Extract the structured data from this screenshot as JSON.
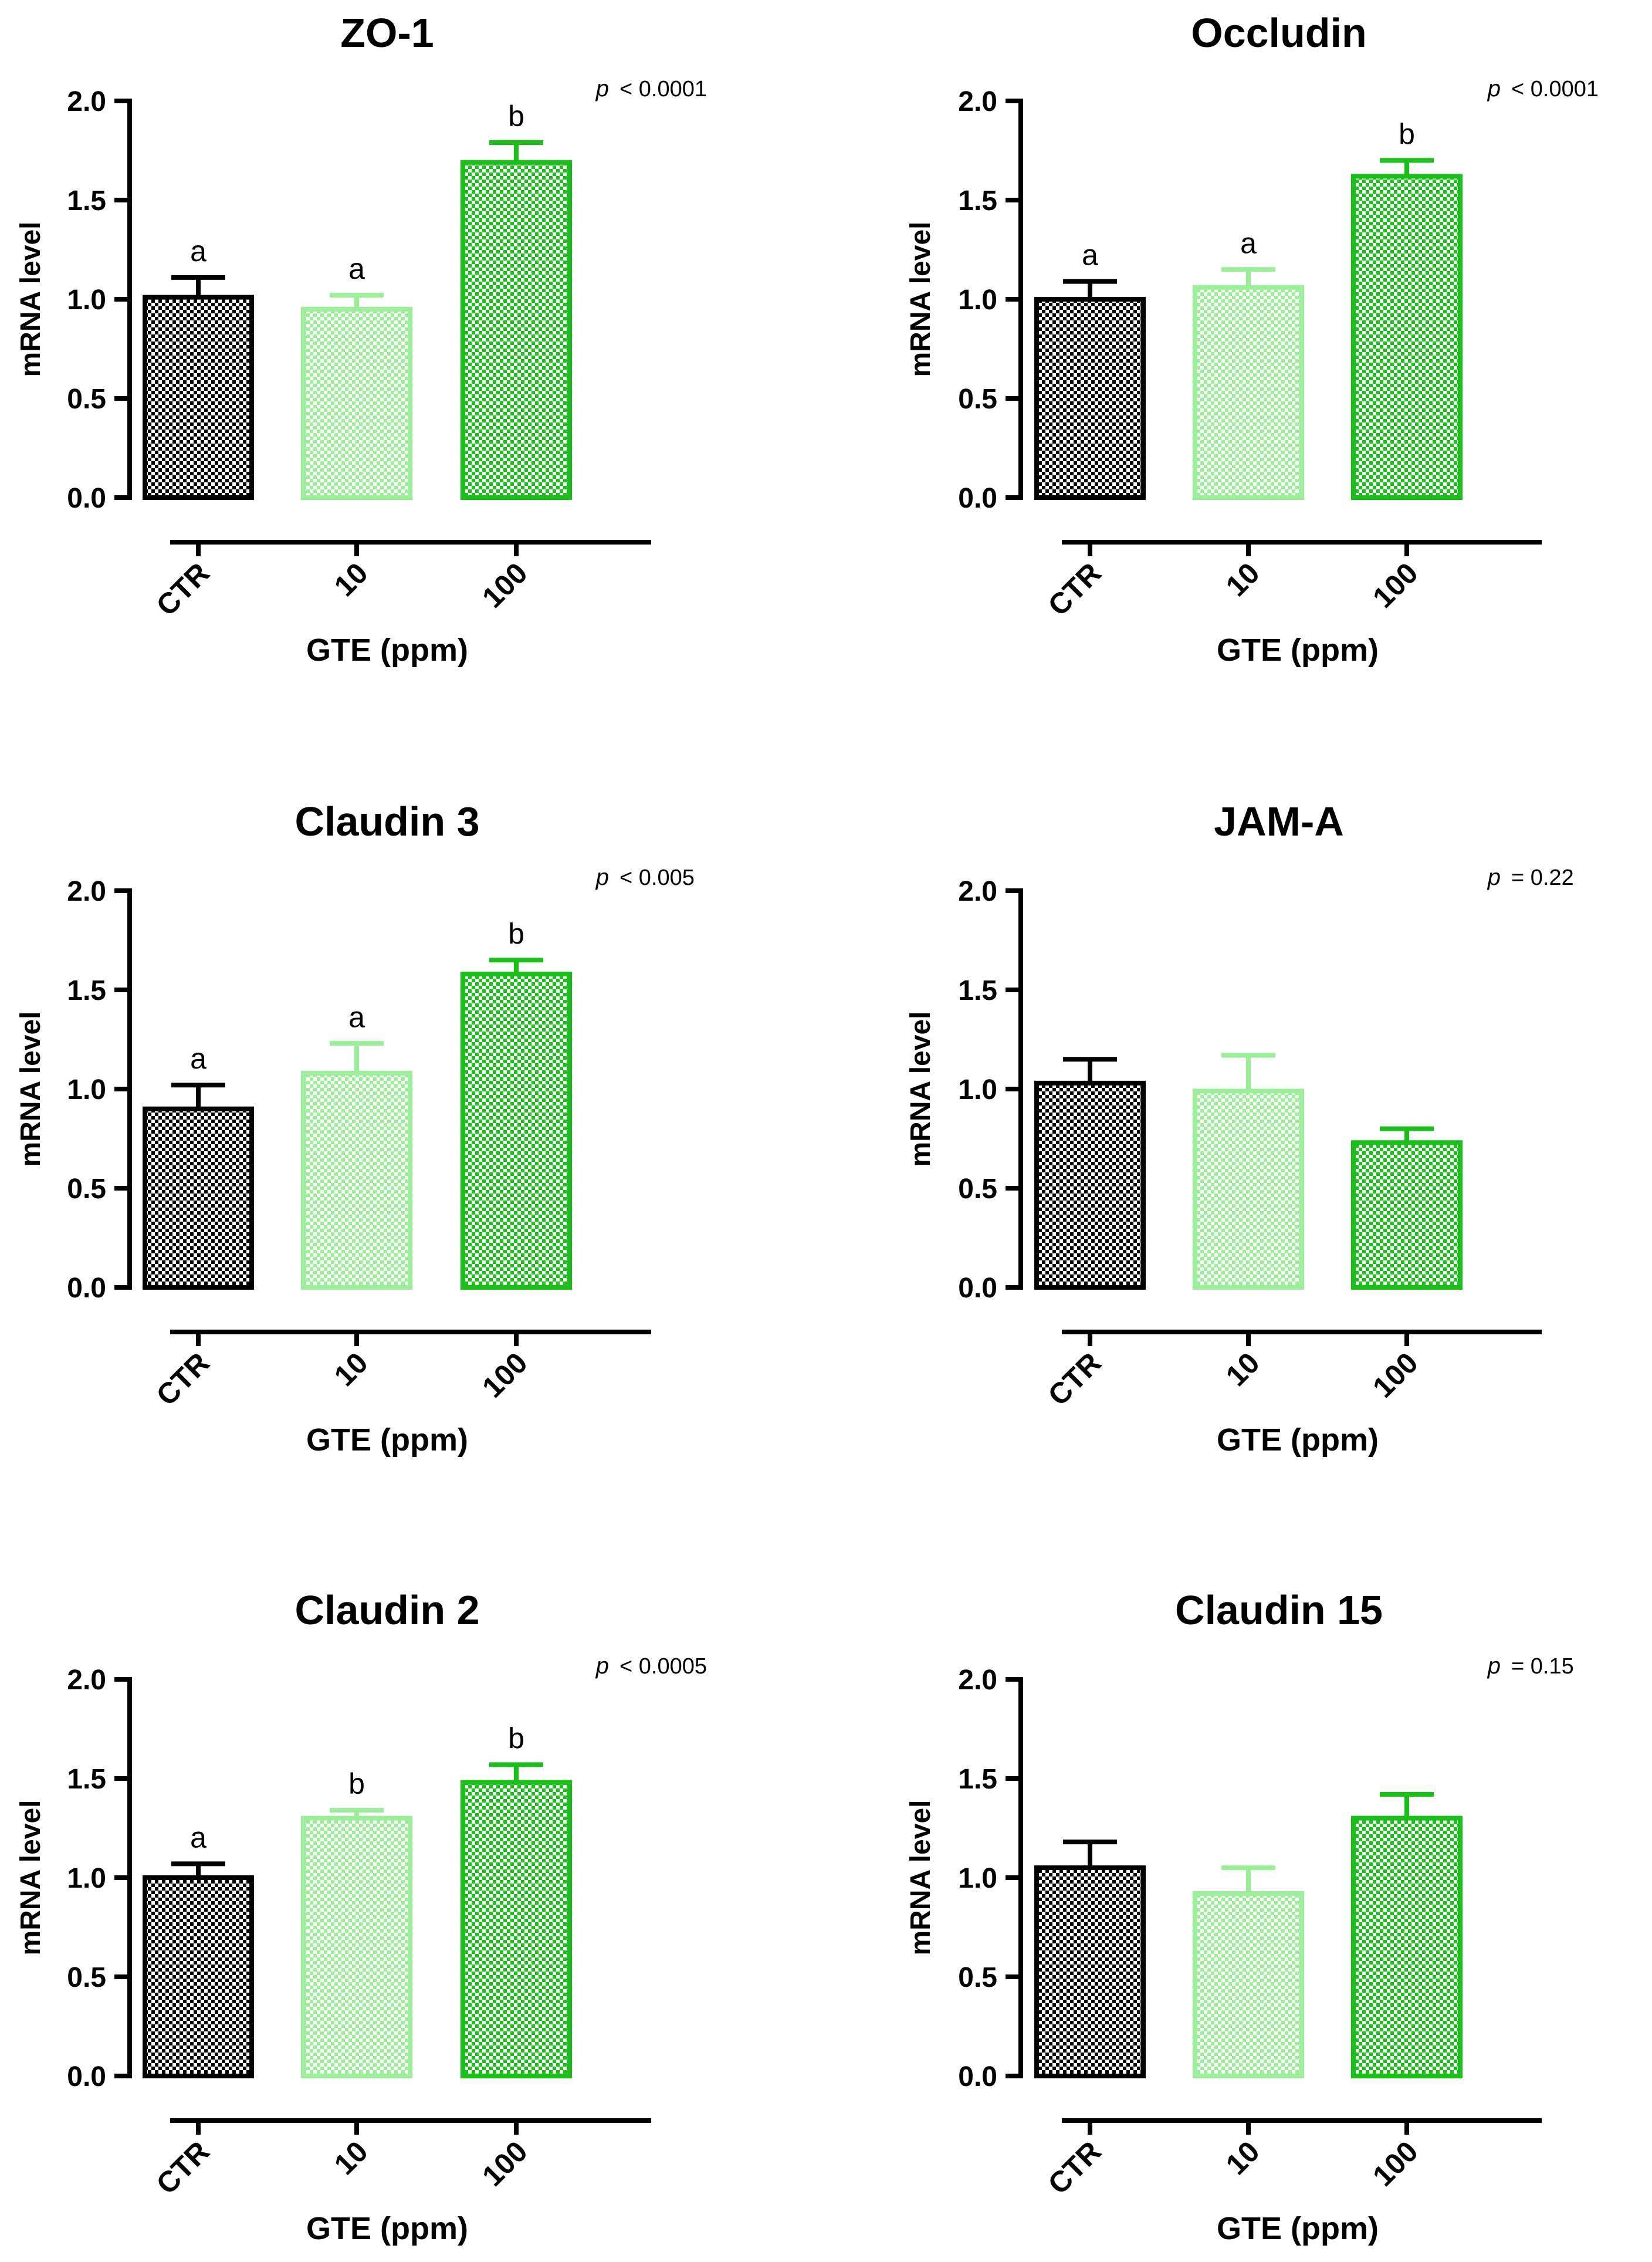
{
  "figure": {
    "colors": {
      "axis": "#000000",
      "CTR": "#000000",
      "10": "#99f096",
      "100": "#17c117"
    },
    "pattern": "checkerboard"
  },
  "chart_data": [
    {
      "type": "bar",
      "title": "ZO-1",
      "categories": [
        "CTR",
        "10",
        "100"
      ],
      "values": [
        1.01,
        0.95,
        1.69
      ],
      "errors": [
        0.1,
        0.07,
        0.1
      ],
      "significance": [
        "a",
        "a",
        "b"
      ],
      "p_symbol": "p",
      "p_text": "< 0.0001",
      "xlabel": "GTE (ppm)",
      "ylabel": "mRNA level",
      "ylim": [
        0,
        2.0
      ],
      "yticks": [
        "0.0",
        "0.5",
        "1.0",
        "1.5",
        "2.0"
      ],
      "grid": false
    },
    {
      "type": "bar",
      "title": "Occludin",
      "categories": [
        "CTR",
        "10",
        "100"
      ],
      "values": [
        1.0,
        1.06,
        1.62
      ],
      "errors": [
        0.09,
        0.09,
        0.08
      ],
      "significance": [
        "a",
        "a",
        "b"
      ],
      "p_symbol": "p",
      "p_text": "< 0.0001",
      "xlabel": "GTE (ppm)",
      "ylabel": "mRNA level",
      "ylim": [
        0,
        2.0
      ],
      "yticks": [
        "0.0",
        "0.5",
        "1.0",
        "1.5",
        "2.0"
      ],
      "grid": false
    },
    {
      "type": "bar",
      "title": "Claudin 3",
      "categories": [
        "CTR",
        "10",
        "100"
      ],
      "values": [
        0.9,
        1.08,
        1.58
      ],
      "errors": [
        0.12,
        0.15,
        0.07
      ],
      "significance": [
        "a",
        "a",
        "b"
      ],
      "p_symbol": "p",
      "p_text": "< 0.005",
      "xlabel": "GTE (ppm)",
      "ylabel": "mRNA level",
      "ylim": [
        0,
        2.0
      ],
      "yticks": [
        "0.0",
        "0.5",
        "1.0",
        "1.5",
        "2.0"
      ],
      "grid": false
    },
    {
      "type": "bar",
      "title": "JAM-A",
      "categories": [
        "CTR",
        "10",
        "100"
      ],
      "values": [
        1.03,
        0.99,
        0.73
      ],
      "errors": [
        0.12,
        0.18,
        0.07
      ],
      "significance": [
        "",
        "",
        ""
      ],
      "p_symbol": "p",
      "p_text": "= 0.22",
      "xlabel": "GTE (ppm)",
      "ylabel": "mRNA level",
      "ylim": [
        0,
        2.0
      ],
      "yticks": [
        "0.0",
        "0.5",
        "1.0",
        "1.5",
        "2.0"
      ],
      "grid": false
    },
    {
      "type": "bar",
      "title": "Claudin 2",
      "categories": [
        "CTR",
        "10",
        "100"
      ],
      "values": [
        1.0,
        1.3,
        1.48
      ],
      "errors": [
        0.07,
        0.04,
        0.09
      ],
      "significance": [
        "a",
        "b",
        "b"
      ],
      "p_symbol": "p",
      "p_text": "< 0.0005",
      "xlabel": "GTE (ppm)",
      "ylabel": "mRNA level",
      "ylim": [
        0,
        2.0
      ],
      "yticks": [
        "0.0",
        "0.5",
        "1.0",
        "1.5",
        "2.0"
      ],
      "grid": false
    },
    {
      "type": "bar",
      "title": "Claudin 15",
      "categories": [
        "CTR",
        "10",
        "100"
      ],
      "values": [
        1.05,
        0.92,
        1.3
      ],
      "errors": [
        0.13,
        0.13,
        0.12
      ],
      "significance": [
        "",
        "",
        ""
      ],
      "p_symbol": "p",
      "p_text": "= 0.15",
      "xlabel": "GTE (ppm)",
      "ylabel": "mRNA level",
      "ylim": [
        0,
        2.0
      ],
      "yticks": [
        "0.0",
        "0.5",
        "1.0",
        "1.5",
        "2.0"
      ],
      "grid": false
    }
  ]
}
